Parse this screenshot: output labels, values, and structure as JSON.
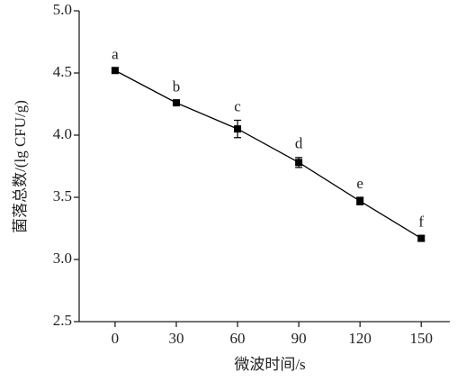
{
  "chart_data": {
    "type": "line",
    "xlabel": "微波时间/s",
    "ylabel": "菌落总数/(lg CFU/g)",
    "x": [
      0,
      30,
      60,
      90,
      120,
      150
    ],
    "series": [
      {
        "color": "#000000",
        "values": [
          4.52,
          4.26,
          4.05,
          3.78,
          3.47,
          3.17
        ],
        "errors": [
          0.02,
          0.02,
          0.07,
          0.04,
          0.03,
          0.02
        ],
        "annotations": [
          "a",
          "b",
          "c",
          "d",
          "e",
          "f"
        ]
      }
    ],
    "xlim": [
      -17.6,
      164
    ],
    "xticks": [
      0,
      30,
      60,
      90,
      120,
      150
    ],
    "ylim": [
      2.5,
      5.0
    ],
    "yticks": [
      {
        "value": 2.5,
        "label": "2.5"
      },
      {
        "value": 3,
        "label": "3.0"
      },
      3.5,
      {
        "value": 4,
        "label": "4.0"
      },
      4.5,
      {
        "value": 5,
        "label": "5.0"
      }
    ],
    "grid": false
  }
}
